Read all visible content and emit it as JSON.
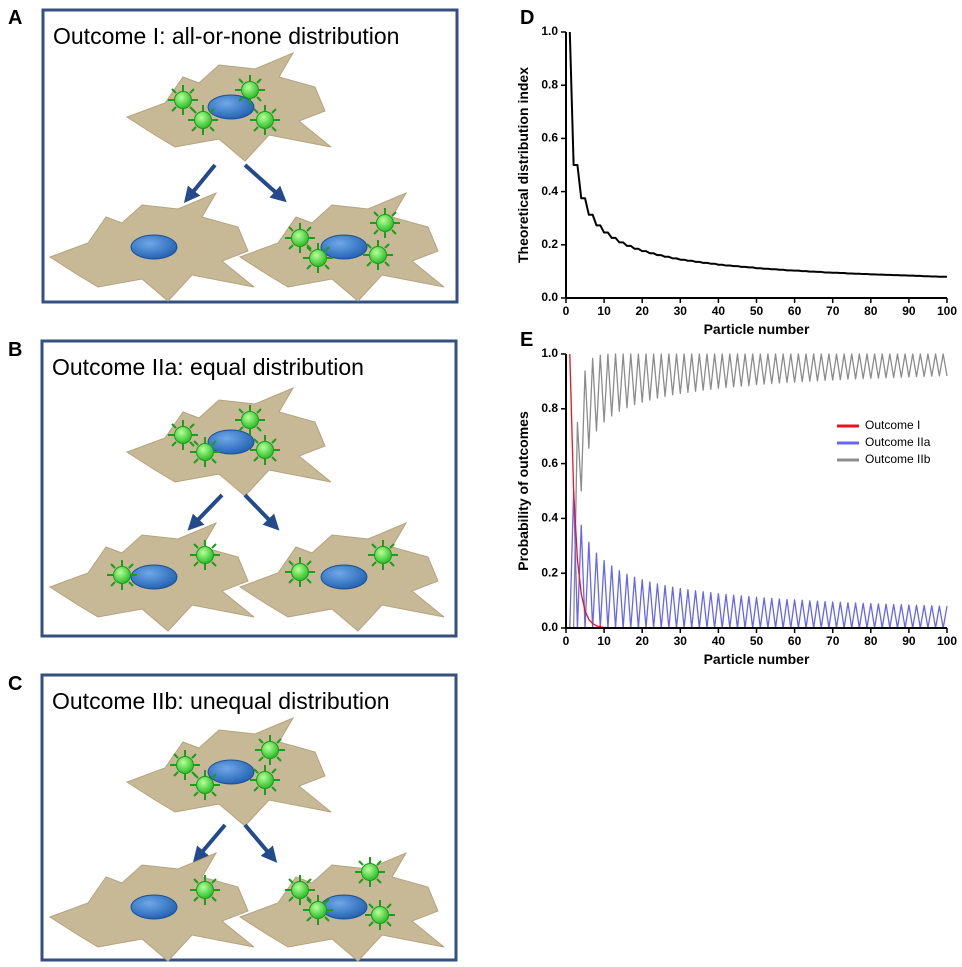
{
  "panels": [
    {
      "label": "A",
      "title": "Outcome I: all-or-none distribution"
    },
    {
      "label": "B",
      "title": "Outcome IIa: equal distribution"
    },
    {
      "label": "C",
      "title": "Outcome IIb: unequal distribution"
    }
  ],
  "chart_data": [
    {
      "type": "line",
      "label": "D",
      "x_label": "Particle number",
      "y_label": "Theoretical distribution index",
      "x": [
        1,
        2,
        3,
        4,
        5,
        6,
        7,
        8,
        9,
        10,
        11,
        12,
        13,
        14,
        15,
        16,
        17,
        18,
        19,
        20,
        21,
        22,
        23,
        24,
        25,
        26,
        27,
        28,
        29,
        30,
        31,
        32,
        33,
        34,
        35,
        36,
        37,
        38,
        39,
        40,
        41,
        42,
        43,
        44,
        45,
        46,
        47,
        48,
        49,
        50,
        51,
        52,
        53,
        54,
        55,
        56,
        57,
        58,
        59,
        60,
        61,
        62,
        63,
        64,
        65,
        66,
        67,
        68,
        69,
        70,
        71,
        72,
        73,
        74,
        75,
        76,
        77,
        78,
        79,
        80,
        81,
        82,
        83,
        84,
        85,
        86,
        87,
        88,
        89,
        90,
        91,
        92,
        93,
        94,
        95,
        96,
        97,
        98,
        99,
        100
      ],
      "series": [
        {
          "color": "#000000",
          "values": [
            1,
            0.5,
            0.5,
            0.375,
            0.375,
            0.313,
            0.313,
            0.273,
            0.273,
            0.246,
            0.246,
            0.226,
            0.226,
            0.209,
            0.209,
            0.196,
            0.196,
            0.185,
            0.185,
            0.176,
            0.176,
            0.168,
            0.168,
            0.161,
            0.161,
            0.155,
            0.155,
            0.149,
            0.149,
            0.144,
            0.144,
            0.14,
            0.14,
            0.136,
            0.136,
            0.132,
            0.132,
            0.129,
            0.129,
            0.125,
            0.125,
            0.122,
            0.122,
            0.12,
            0.12,
            0.117,
            0.117,
            0.115,
            0.115,
            0.112,
            0.112,
            0.11,
            0.11,
            0.108,
            0.108,
            0.106,
            0.106,
            0.104,
            0.104,
            0.103,
            0.103,
            0.101,
            0.101,
            0.099,
            0.099,
            0.098,
            0.098,
            0.096,
            0.096,
            0.095,
            0.095,
            0.094,
            0.094,
            0.092,
            0.092,
            0.091,
            0.091,
            0.09,
            0.09,
            0.089,
            0.089,
            0.088,
            0.088,
            0.087,
            0.087,
            0.086,
            0.086,
            0.085,
            0.085,
            0.084,
            0.084,
            0.083,
            0.083,
            0.082,
            0.082,
            0.081,
            0.081,
            0.08,
            0.08,
            0.08
          ]
        }
      ],
      "xlim": [
        0,
        100
      ],
      "ylim": [
        0,
        1
      ],
      "xticks": [
        0,
        10,
        20,
        30,
        40,
        50,
        60,
        70,
        80,
        90,
        100
      ],
      "yticks": [
        {
          "value": 0,
          "label": "0.0"
        },
        {
          "value": 0.2,
          "label": "0.2"
        },
        {
          "value": 0.4,
          "label": "0.4"
        },
        {
          "value": 0.6,
          "label": "0.6"
        },
        {
          "value": 0.8,
          "label": "0.8"
        },
        {
          "value": 1,
          "label": "1.0"
        }
      ]
    },
    {
      "type": "line",
      "label": "E",
      "x_label": "Particle number",
      "y_label": "Probability of outcomes",
      "legend": "right",
      "x": [
        1,
        2,
        3,
        4,
        5,
        6,
        7,
        8,
        9,
        10,
        11,
        12,
        13,
        14,
        15,
        16,
        17,
        18,
        19,
        20,
        21,
        22,
        23,
        24,
        25,
        26,
        27,
        28,
        29,
        30,
        31,
        32,
        33,
        34,
        35,
        36,
        37,
        38,
        39,
        40,
        41,
        42,
        43,
        44,
        45,
        46,
        47,
        48,
        49,
        50,
        51,
        52,
        53,
        54,
        55,
        56,
        57,
        58,
        59,
        60,
        61,
        62,
        63,
        64,
        65,
        66,
        67,
        68,
        69,
        70,
        71,
        72,
        73,
        74,
        75,
        76,
        77,
        78,
        79,
        80,
        81,
        82,
        83,
        84,
        85,
        86,
        87,
        88,
        89,
        90,
        91,
        92,
        93,
        94,
        95,
        96,
        97,
        98,
        99,
        100
      ],
      "series": [
        {
          "name": "Outcome IIb",
          "color": "#8c8c8c",
          "values": [
            0,
            0,
            0.75,
            0.5,
            0.938,
            0.656,
            0.984,
            0.719,
            0.996,
            0.752,
            0.999,
            0.774,
            1,
            0.791,
            1,
            0.804,
            1,
            0.815,
            1,
            0.824,
            1,
            0.832,
            1,
            0.839,
            1,
            0.845,
            1,
            0.851,
            1,
            0.856,
            1,
            0.86,
            1,
            0.864,
            1,
            0.868,
            1,
            0.871,
            1,
            0.875,
            1,
            0.878,
            1,
            0.88,
            1,
            0.883,
            1,
            0.885,
            1,
            0.888,
            1,
            0.89,
            1,
            0.892,
            1,
            0.894,
            1,
            0.896,
            1,
            0.897,
            1,
            0.899,
            1,
            0.901,
            1,
            0.902,
            1,
            0.904,
            1,
            0.905,
            1,
            0.906,
            1,
            0.908,
            1,
            0.909,
            1,
            0.91,
            1,
            0.911,
            1,
            0.912,
            1,
            0.913,
            1,
            0.914,
            1,
            0.915,
            1,
            0.916,
            1,
            0.917,
            1,
            0.918,
            1,
            0.919,
            1,
            0.92,
            1,
            0.92
          ]
        },
        {
          "name": "Outcome IIa",
          "color": "#6666ee",
          "values": [
            0,
            0.5,
            0,
            0.375,
            0,
            0.313,
            0,
            0.273,
            0,
            0.246,
            0,
            0.226,
            0,
            0.209,
            0,
            0.196,
            0,
            0.185,
            0,
            0.176,
            0,
            0.168,
            0,
            0.161,
            0,
            0.155,
            0,
            0.149,
            0,
            0.144,
            0,
            0.14,
            0,
            0.136,
            0,
            0.132,
            0,
            0.129,
            0,
            0.125,
            0,
            0.122,
            0,
            0.12,
            0,
            0.117,
            0,
            0.115,
            0,
            0.112,
            0,
            0.11,
            0,
            0.108,
            0,
            0.106,
            0,
            0.104,
            0,
            0.103,
            0,
            0.101,
            0,
            0.099,
            0,
            0.098,
            0,
            0.096,
            0,
            0.095,
            0,
            0.094,
            0,
            0.092,
            0,
            0.091,
            0,
            0.09,
            0,
            0.089,
            0,
            0.088,
            0,
            0.087,
            0,
            0.086,
            0,
            0.085,
            0,
            0.084,
            0,
            0.083,
            0,
            0.082,
            0,
            0.081,
            0,
            0.08,
            0,
            0.08
          ]
        },
        {
          "name": "Outcome I",
          "color": "#e8141e",
          "values": [
            1,
            0.5,
            0.25,
            0.125,
            0.063,
            0.031,
            0.016,
            0.008,
            0.004,
            0.002,
            0.001,
            0,
            0,
            0,
            0,
            0,
            0,
            0,
            0,
            0,
            0,
            0,
            0,
            0,
            0,
            0,
            0,
            0,
            0,
            0,
            0,
            0,
            0,
            0,
            0,
            0,
            0,
            0,
            0,
            0,
            0,
            0,
            0,
            0,
            0,
            0,
            0,
            0,
            0,
            0,
            0,
            0,
            0,
            0,
            0,
            0,
            0,
            0,
            0,
            0,
            0,
            0,
            0,
            0,
            0,
            0,
            0,
            0,
            0,
            0,
            0,
            0,
            0,
            0,
            0,
            0,
            0,
            0,
            0,
            0,
            0,
            0,
            0,
            0,
            0,
            0,
            0,
            0,
            0,
            0,
            0,
            0,
            0,
            0,
            0,
            0,
            0,
            0,
            0,
            0
          ]
        }
      ],
      "xlim": [
        0,
        100
      ],
      "ylim": [
        0,
        1
      ],
      "xticks": [
        0,
        10,
        20,
        30,
        40,
        50,
        60,
        70,
        80,
        90,
        100
      ],
      "yticks": [
        {
          "value": 0,
          "label": "0.0"
        },
        {
          "value": 0.2,
          "label": "0.2"
        },
        {
          "value": 0.4,
          "label": "0.4"
        },
        {
          "value": 0.6,
          "label": "0.6"
        },
        {
          "value": 0.8,
          "label": "0.8"
        },
        {
          "value": 1,
          "label": "1.0"
        }
      ]
    }
  ]
}
